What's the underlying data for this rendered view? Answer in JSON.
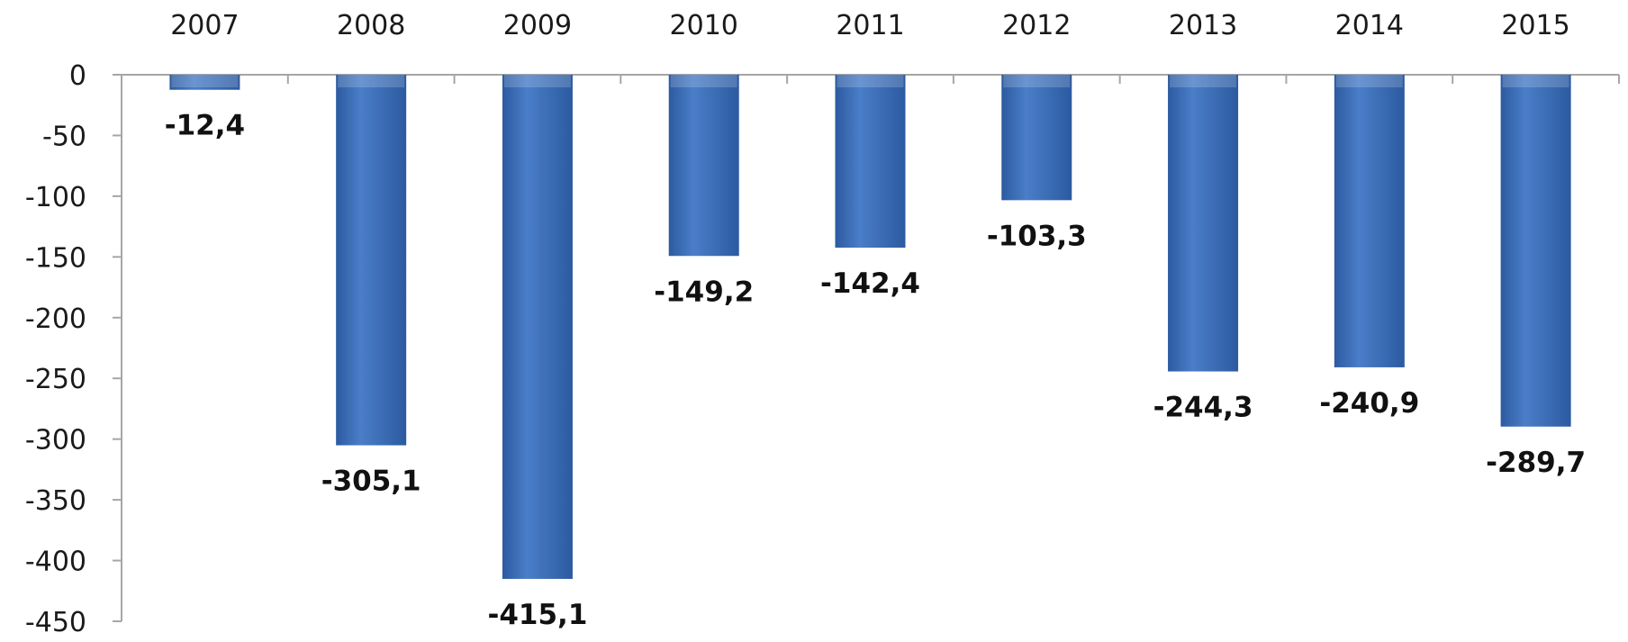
{
  "chart_data": {
    "type": "bar",
    "categories": [
      "2007",
      "2008",
      "2009",
      "2010",
      "2011",
      "2012",
      "2013",
      "2014",
      "2015"
    ],
    "values": [
      -12.4,
      -305.1,
      -415.1,
      -149.2,
      -142.4,
      -103.3,
      -244.3,
      -240.9,
      -289.7
    ],
    "data_labels": [
      "-12,4",
      "-305,1",
      "-415,1",
      "-149,2",
      "-142,4",
      "-103,3",
      "-244,3",
      "-240,9",
      "-289,7"
    ],
    "y_ticks": [
      0,
      -50,
      -100,
      -150,
      -200,
      -250,
      -300,
      -350,
      -400,
      -450
    ],
    "y_tick_labels": [
      "0",
      "-50",
      "-100",
      "-150",
      "-200",
      "-250",
      "-300",
      "-350",
      "-400",
      "-450"
    ],
    "ylim": [
      -450,
      0
    ],
    "x_axis_position": "top",
    "grid": false,
    "legend": "none",
    "title": "",
    "xlabel": "",
    "ylabel": "",
    "bar_color": "#4a7ec8",
    "bar_color_dark": "#2c5aa0",
    "axis_color": "#a6a6a6"
  }
}
